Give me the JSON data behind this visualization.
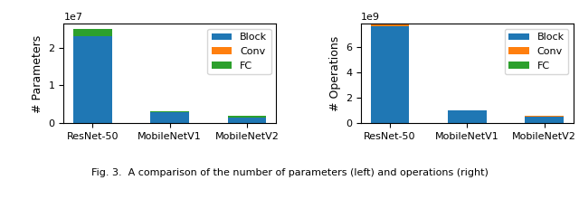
{
  "categories": [
    "ResNet-50",
    "MobileNetV1",
    "MobileNetV2"
  ],
  "params": {
    "Block": [
      23000000.0,
      3000000.0,
      1500000.0
    ],
    "Conv": [
      0,
      0,
      0
    ],
    "FC": [
      2000000.0,
      200000.0,
      500000.0
    ]
  },
  "ops": {
    "Block": [
      7600000000.0,
      1000000000.0,
      550000000.0
    ],
    "Conv": [
      200000000.0,
      0,
      50000000.0
    ],
    "FC": [
      0,
      0,
      0
    ]
  },
  "colors": {
    "Block": "#1f77b4",
    "Conv": "#ff7f0e",
    "FC": "#2ca02c"
  },
  "ylabel_left": "# Parameters",
  "ylabel_right": "# Operations",
  "legend_labels": [
    "Block",
    "Conv",
    "FC"
  ],
  "caption": "Fig. 3.  A comparison of the number of parameters (left) and operations (right)"
}
